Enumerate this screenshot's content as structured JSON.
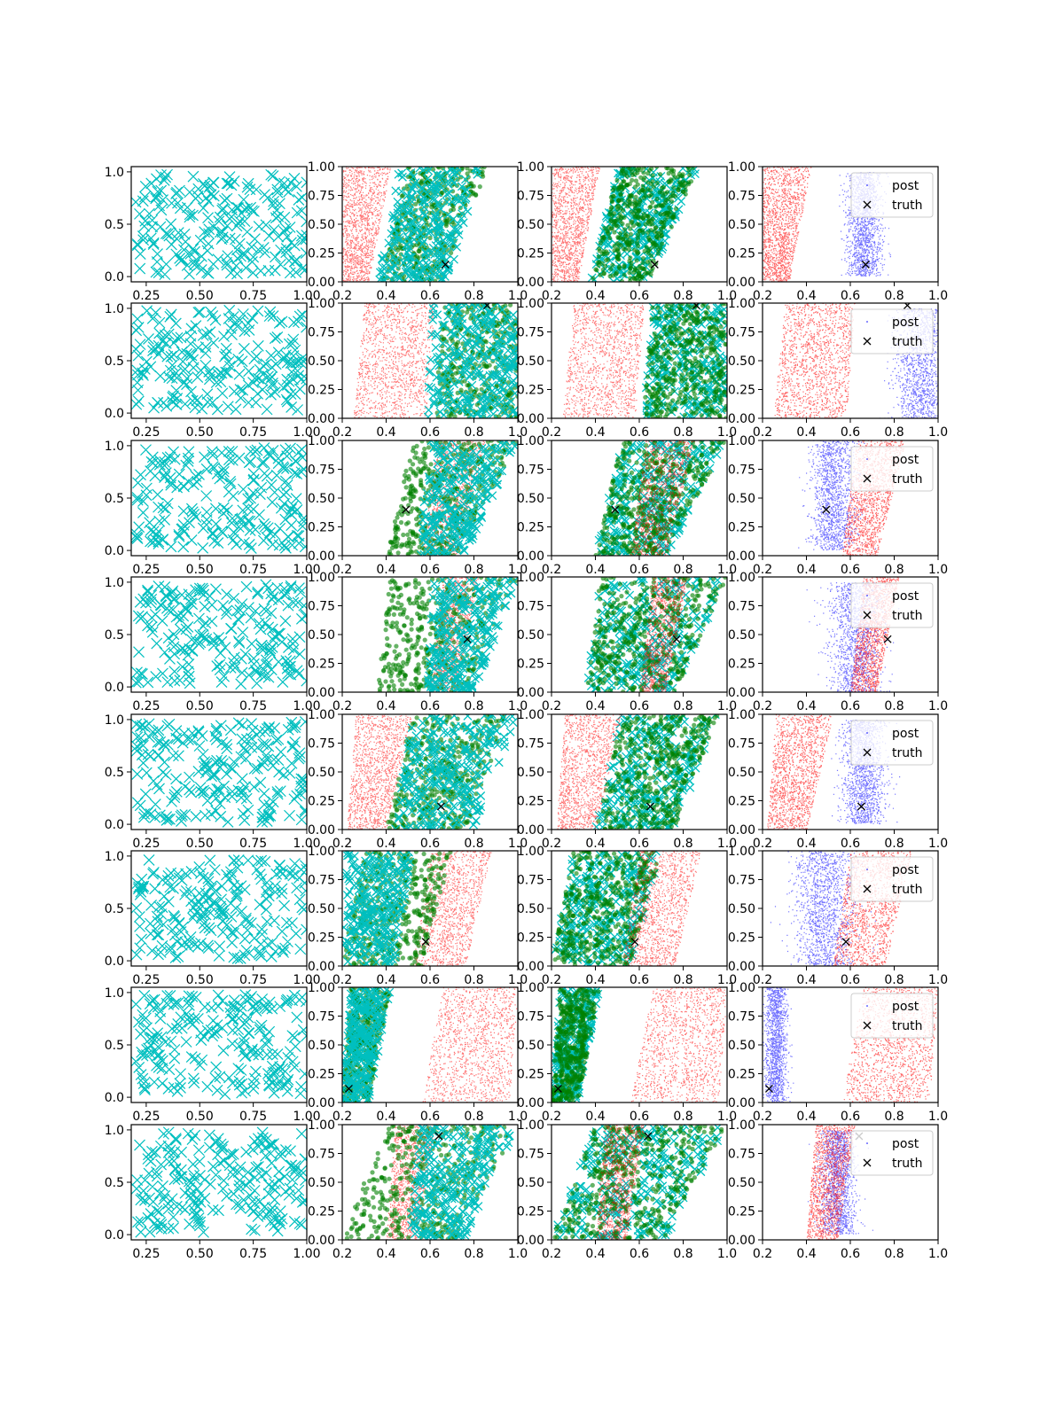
{
  "chart_data": {
    "type": "scatter",
    "layout": "8 rows x 4 columns of scatter panels",
    "legend": {
      "entries": [
        "post",
        "truth"
      ],
      "placement": "upper right of column 4 panels"
    },
    "colors": {
      "cyan": "#00bfbf",
      "red": "#ff0000",
      "green": "#008000",
      "blue": "#0000ff",
      "black": "#000000"
    },
    "columns": [
      {
        "col": 1,
        "xlim": [
          0.18,
          1.0
        ],
        "ylim": [
          -0.05,
          1.05
        ],
        "xticks": [
          "0.25",
          "0.50",
          "0.75",
          "1.00"
        ],
        "yticks": [
          "0.0",
          "0.5",
          "1.0"
        ],
        "series": [
          {
            "marker": "x",
            "color": "cyan"
          }
        ]
      },
      {
        "col": 2,
        "xlim": [
          0.2,
          1.0
        ],
        "ylim": [
          0.0,
          1.0
        ],
        "xticks": [
          "0.2",
          "0.4",
          "0.6",
          "0.8",
          "1.0"
        ],
        "yticks": [
          "0.00",
          "0.25",
          "0.50",
          "0.75",
          "1.00"
        ],
        "series": [
          {
            "marker": "dot",
            "color": "red"
          },
          {
            "marker": "circle",
            "color": "green"
          },
          {
            "marker": "x",
            "color": "cyan"
          },
          {
            "marker": "x",
            "color": "black",
            "role": "truth"
          }
        ]
      },
      {
        "col": 3,
        "xlim": [
          0.2,
          1.0
        ],
        "ylim": [
          0.0,
          1.0
        ],
        "xticks": [
          "0.2",
          "0.4",
          "0.6",
          "0.8",
          "1.0"
        ],
        "yticks": [
          "0.00",
          "0.25",
          "0.50",
          "0.75",
          "1.00"
        ],
        "series": [
          {
            "marker": "dot",
            "color": "red"
          },
          {
            "marker": "circle",
            "color": "green"
          },
          {
            "marker": "x",
            "color": "cyan"
          },
          {
            "marker": "x",
            "color": "black",
            "role": "truth"
          }
        ]
      },
      {
        "col": 4,
        "xlim": [
          0.2,
          1.0
        ],
        "ylim": [
          0.0,
          1.0
        ],
        "xticks": [
          "0.2",
          "0.4",
          "0.6",
          "0.8",
          "1.0"
        ],
        "yticks": [
          "0.00",
          "0.25",
          "0.50",
          "0.75",
          "1.00"
        ],
        "series": [
          {
            "name": "post",
            "marker": "dot",
            "color": "blue"
          },
          {
            "marker": "dot",
            "color": "red"
          },
          {
            "name": "truth",
            "marker": "x",
            "color": "black"
          }
        ]
      }
    ],
    "rows": [
      {
        "row": 1,
        "truth": [
          0.67,
          0.15
        ],
        "red_band": {
          "x_at_y0": [
            0.2,
            0.32
          ],
          "x_at_y1": [
            0.2,
            0.42
          ]
        },
        "other_band": {
          "x_at_y0": [
            0.38,
            0.64
          ],
          "x_at_y1": [
            0.5,
            0.87
          ]
        },
        "col2_cyan_band": {
          "x_at_y0": [
            0.36,
            0.68
          ],
          "x_at_y1": [
            0.46,
            0.83
          ]
        },
        "col4_blue": {
          "center": [
            0.66,
            0.5
          ],
          "spread": [
            0.08,
            0.45
          ]
        }
      },
      {
        "row": 2,
        "truth": [
          0.86,
          0.98
        ],
        "red_band": {
          "x_at_y0": [
            0.25,
            0.58
          ],
          "x_at_y1": [
            0.3,
            0.62
          ]
        },
        "other_band": {
          "x_at_y0": [
            0.62,
            1.0
          ],
          "x_at_y1": [
            0.66,
            1.0
          ]
        },
        "col2_cyan_band": {
          "x_at_y0": [
            0.58,
            1.0
          ],
          "x_at_y1": [
            0.6,
            1.0
          ]
        },
        "col4_blue": {
          "center": [
            0.92,
            0.45
          ],
          "spread": [
            0.12,
            0.5
          ]
        }
      },
      {
        "row": 3,
        "truth": [
          0.49,
          0.4
        ],
        "red_band": {
          "x_at_y0": [
            0.56,
            0.72
          ],
          "x_at_y1": [
            0.63,
            0.85
          ]
        },
        "other_band": {
          "x_at_y0": [
            0.4,
            0.72
          ],
          "x_at_y1": [
            0.52,
            1.0
          ]
        },
        "col2_cyan_band": {
          "x_at_y0": [
            0.55,
            0.76
          ],
          "x_at_y1": [
            0.6,
            1.0
          ]
        },
        "col4_blue": {
          "center": [
            0.52,
            0.55
          ],
          "spread": [
            0.1,
            0.5
          ]
        }
      },
      {
        "row": 4,
        "truth": [
          0.77,
          0.46
        ],
        "red_band": {
          "x_at_y0": [
            0.6,
            0.72
          ],
          "x_at_y1": [
            0.66,
            0.82
          ]
        },
        "other_band": {
          "x_at_y0": [
            0.36,
            0.76
          ],
          "x_at_y1": [
            0.42,
            1.0
          ]
        },
        "col2_cyan_band": {
          "x_at_y0": [
            0.58,
            0.8
          ],
          "x_at_y1": [
            0.62,
            1.0
          ]
        },
        "col4_blue": {
          "center": [
            0.62,
            0.45
          ],
          "spread": [
            0.12,
            0.5
          ]
        }
      },
      {
        "row": 5,
        "truth": [
          0.65,
          0.2
        ],
        "red_band": {
          "x_at_y0": [
            0.22,
            0.4
          ],
          "x_at_y1": [
            0.26,
            0.52
          ]
        },
        "other_band": {
          "x_at_y0": [
            0.4,
            0.76
          ],
          "x_at_y1": [
            0.52,
            0.96
          ]
        },
        "col2_cyan_band": {
          "x_at_y0": [
            0.44,
            0.8
          ],
          "x_at_y1": [
            0.52,
            1.0
          ]
        },
        "col4_blue": {
          "center": [
            0.66,
            0.5
          ],
          "spread": [
            0.1,
            0.45
          ]
        }
      },
      {
        "row": 6,
        "truth": [
          0.58,
          0.21
        ],
        "red_band": {
          "x_at_y0": [
            0.52,
            0.76
          ],
          "x_at_y1": [
            0.6,
            0.88
          ]
        },
        "other_band": {
          "x_at_y0": [
            0.2,
            0.56
          ],
          "x_at_y1": [
            0.3,
            0.7
          ]
        },
        "col2_cyan_band": {
          "x_at_y0": [
            0.2,
            0.44
          ],
          "x_at_y1": [
            0.22,
            0.52
          ]
        },
        "col4_blue": {
          "center": [
            0.48,
            0.5
          ],
          "spread": [
            0.14,
            0.5
          ]
        }
      },
      {
        "row": 7,
        "truth": [
          0.23,
          0.12
        ],
        "red_band": {
          "x_at_y0": [
            0.56,
            0.96
          ],
          "x_at_y1": [
            0.66,
            1.0
          ]
        },
        "other_band": {
          "x_at_y0": [
            0.2,
            0.32
          ],
          "x_at_y1": [
            0.24,
            0.42
          ]
        },
        "col2_cyan_band": {
          "x_at_y0": [
            0.2,
            0.32
          ],
          "x_at_y1": [
            0.24,
            0.42
          ]
        },
        "col4_blue": {
          "center": [
            0.26,
            0.5
          ],
          "spread": [
            0.05,
            0.5
          ]
        }
      },
      {
        "row": 8,
        "truth": [
          0.64,
          0.9
        ],
        "red_band": {
          "x_at_y0": [
            0.4,
            0.54
          ],
          "x_at_y1": [
            0.44,
            0.62
          ]
        },
        "other_band": {
          "x_at_y0": [
            0.2,
            0.72
          ],
          "x_at_y1": [
            0.4,
            1.0
          ]
        },
        "col2_cyan_band": {
          "x_at_y0": [
            0.5,
            0.75
          ],
          "x_at_y1": [
            0.56,
            1.0
          ]
        },
        "col4_blue": {
          "center": [
            0.54,
            0.5
          ],
          "spread": [
            0.08,
            0.45
          ]
        }
      }
    ]
  }
}
